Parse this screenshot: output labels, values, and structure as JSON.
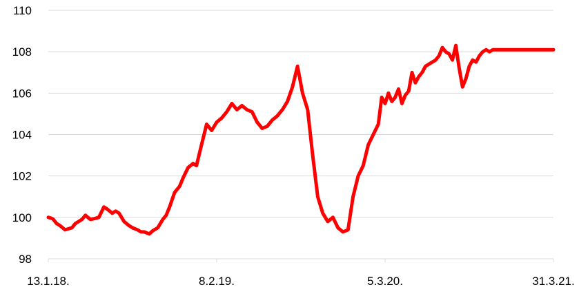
{
  "chart_data": {
    "type": "line",
    "title": "",
    "xlabel": "",
    "ylabel": "",
    "ylim": [
      98,
      110
    ],
    "yticks": [
      98,
      100,
      102,
      104,
      106,
      108,
      110
    ],
    "xtick_labels": [
      "13.1.18.",
      "8.2.19.",
      "5.3.20.",
      "31.3.21."
    ],
    "grid": "horizontal",
    "legend": "none",
    "series_color": "#ff0000",
    "series": [
      {
        "x": [
          0,
          0.02,
          0.03,
          0.05,
          0.07,
          0.1,
          0.12,
          0.14,
          0.16,
          0.18,
          0.2,
          0.22,
          0.25,
          0.28,
          0.3,
          0.33,
          0.35,
          0.38,
          0.4,
          0.42,
          0.45,
          0.48,
          0.5,
          0.53,
          0.55,
          0.57,
          0.6,
          0.62,
          0.65,
          0.68,
          0.7,
          0.72,
          0.75,
          0.78,
          0.8,
          0.83,
          0.86,
          0.88,
          0.91,
          0.94,
          0.97,
          1.0,
          1.03,
          1.06,
          1.09,
          1.12,
          1.15,
          1.18,
          1.21,
          1.24,
          1.27,
          1.3,
          1.33,
          1.36,
          1.39,
          1.42,
          1.45,
          1.48,
          1.51,
          1.54,
          1.57,
          1.6,
          1.63,
          1.66,
          1.69,
          1.72,
          1.75,
          1.78,
          1.81,
          1.84,
          1.87,
          1.9,
          1.93,
          1.96,
          1.98,
          2.0,
          2.02,
          2.04,
          2.06,
          2.08,
          2.1,
          2.12,
          2.14,
          2.16,
          2.18,
          2.2,
          2.22,
          2.24,
          2.26,
          2.28,
          2.3,
          2.32,
          2.34,
          2.36,
          2.38,
          2.4,
          2.42,
          2.44,
          2.46,
          2.48,
          2.5,
          2.52,
          2.54,
          2.56,
          2.58,
          2.6,
          2.62,
          2.64,
          2.66,
          2.68,
          2.7,
          2.72,
          2.74,
          2.76,
          2.78,
          2.8,
          2.82,
          2.84,
          2.86,
          2.88,
          2.9,
          2.92,
          2.94,
          2.96,
          2.98,
          3.0
        ],
        "values": [
          100.0,
          99.95,
          99.9,
          99.7,
          99.6,
          99.4,
          99.45,
          99.5,
          99.7,
          99.8,
          99.9,
          100.1,
          99.9,
          99.95,
          100.0,
          100.5,
          100.4,
          100.2,
          100.3,
          100.2,
          99.8,
          99.6,
          99.5,
          99.4,
          99.3,
          99.3,
          99.2,
          99.35,
          99.5,
          99.9,
          100.1,
          100.5,
          101.2,
          101.5,
          101.9,
          102.4,
          102.6,
          102.5,
          103.5,
          104.5,
          104.2,
          104.6,
          104.8,
          105.1,
          105.5,
          105.2,
          105.4,
          105.2,
          105.1,
          104.6,
          104.3,
          104.4,
          104.7,
          104.9,
          105.2,
          105.6,
          106.3,
          107.3,
          106.0,
          105.2,
          103.0,
          101.0,
          100.2,
          99.8,
          100.0,
          99.5,
          99.3,
          99.4,
          101.0,
          102.0,
          102.5,
          103.5,
          104.0,
          104.5,
          105.8,
          105.5,
          106.0,
          105.6,
          105.8,
          106.2,
          105.5,
          105.9,
          106.1,
          107.0,
          106.5,
          106.8,
          107.0,
          107.3,
          107.4,
          107.5,
          107.6,
          107.8,
          108.2,
          108.0,
          107.9,
          107.6,
          108.3,
          107.2,
          106.3,
          106.7,
          107.3,
          107.6,
          107.5,
          107.8,
          108.0,
          108.1,
          108.0,
          108.1,
          108.1,
          108.1,
          108.1,
          108.1,
          108.1,
          108.1,
          108.1,
          108.1,
          108.1,
          108.1,
          108.1,
          108.1,
          108.1,
          108.1,
          108.1,
          108.1,
          108.1,
          108.1
        ]
      }
    ]
  }
}
